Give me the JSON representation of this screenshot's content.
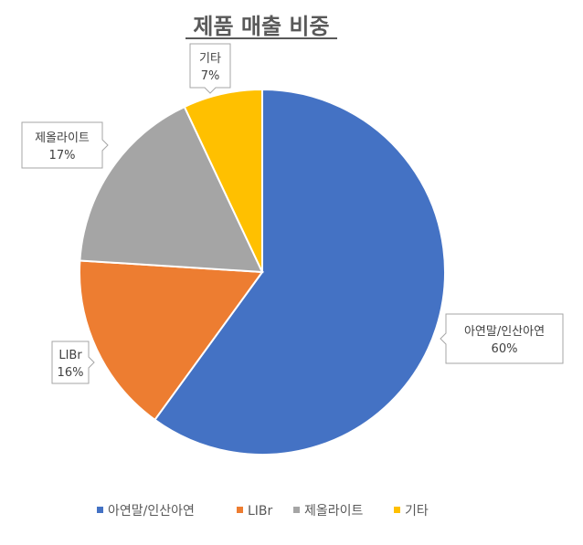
{
  "chart_data": {
    "type": "pie",
    "title": "제품 매출 비중",
    "categories": [
      "아연말/인산아연",
      "LIBr",
      "제올라이트",
      "기타"
    ],
    "values": [
      60,
      16,
      17,
      7
    ],
    "value_labels": [
      "60%",
      "16%",
      "17%",
      "7%"
    ],
    "colors": [
      "#4472C4",
      "#ED7D31",
      "#A5A5A5",
      "#FFC000"
    ],
    "legend_position": "bottom",
    "data_label_style": "callout"
  }
}
